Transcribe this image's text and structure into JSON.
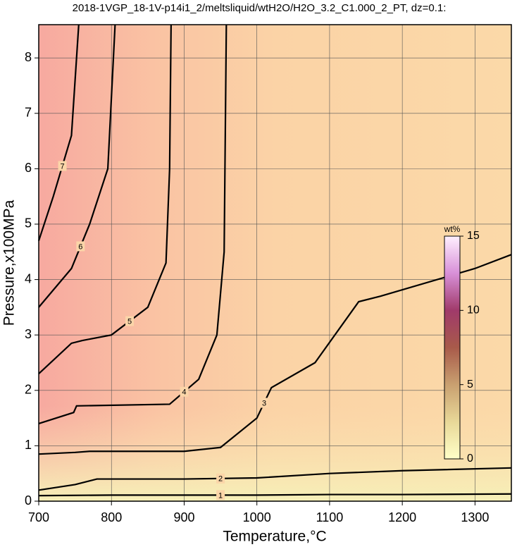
{
  "chart_data": {
    "type": "contour",
    "title": "2018-1VGP_18-1V-p14i1_2/meltsliquid/wtH2O/H2O_3.2_C1.000_2_PT, dz=0.1:",
    "x_label": "Temperature,°C",
    "y_label": "Pressure,x100MPa",
    "xlim": [
      700,
      1350
    ],
    "ylim": [
      0,
      8.6
    ],
    "xticks": [
      700,
      800,
      900,
      1000,
      1100,
      1200,
      1300
    ],
    "yticks": [
      0,
      1,
      2,
      3,
      4,
      5,
      6,
      7,
      8
    ],
    "grid": true,
    "contours": [
      {
        "level": 1,
        "color": "#000000",
        "x": [
          700,
          800,
          900,
          1000,
          1100,
          1200,
          1350
        ],
        "y": [
          0.1,
          0.11,
          0.11,
          0.11,
          0.12,
          0.12,
          0.13
        ]
      },
      {
        "level": 2,
        "color": "#000000",
        "x": [
          700,
          750,
          780,
          900,
          1000,
          1100,
          1200,
          1350
        ],
        "y": [
          0.2,
          0.3,
          0.4,
          0.4,
          0.42,
          0.5,
          0.55,
          0.6
        ]
      },
      {
        "level": 3,
        "color": "#000000",
        "x": [
          700,
          750,
          770,
          900,
          950,
          1000,
          1020,
          1080,
          1140,
          1170,
          1300,
          1350
        ],
        "y": [
          0.85,
          0.88,
          0.9,
          0.9,
          0.97,
          1.5,
          2.05,
          2.5,
          3.6,
          3.7,
          4.2,
          4.45
        ]
      },
      {
        "level": 4,
        "color": "#000000",
        "x": [
          700,
          748,
          752,
          880,
          920,
          945,
          955,
          958
        ],
        "y": [
          1.4,
          1.6,
          1.72,
          1.75,
          2.2,
          3.0,
          4.5,
          8.6
        ]
      },
      {
        "level": 5,
        "color": "#000000",
        "x": [
          700,
          745,
          760,
          800,
          850,
          875,
          880,
          882
        ],
        "y": [
          2.3,
          2.85,
          2.9,
          3.0,
          3.5,
          4.3,
          6.0,
          8.6
        ]
      },
      {
        "level": 6,
        "color": "#000000",
        "x": [
          700,
          745,
          770,
          795,
          805
        ],
        "y": [
          3.5,
          4.2,
          5.0,
          6.0,
          8.6
        ]
      },
      {
        "level": 7,
        "color": "#000000",
        "x": [
          700,
          720,
          745,
          755
        ],
        "y": [
          4.7,
          5.5,
          6.6,
          8.6
        ]
      }
    ],
    "colorbar": {
      "title": "wt%",
      "lim": [
        0,
        15
      ],
      "ticks": [
        0,
        5,
        10,
        15
      ],
      "colors": [
        "#ffffc8",
        "#e8d898",
        "#c9a070",
        "#a85a4a",
        "#a03a6a",
        "#d890d8",
        "#fff0ff"
      ]
    }
  }
}
